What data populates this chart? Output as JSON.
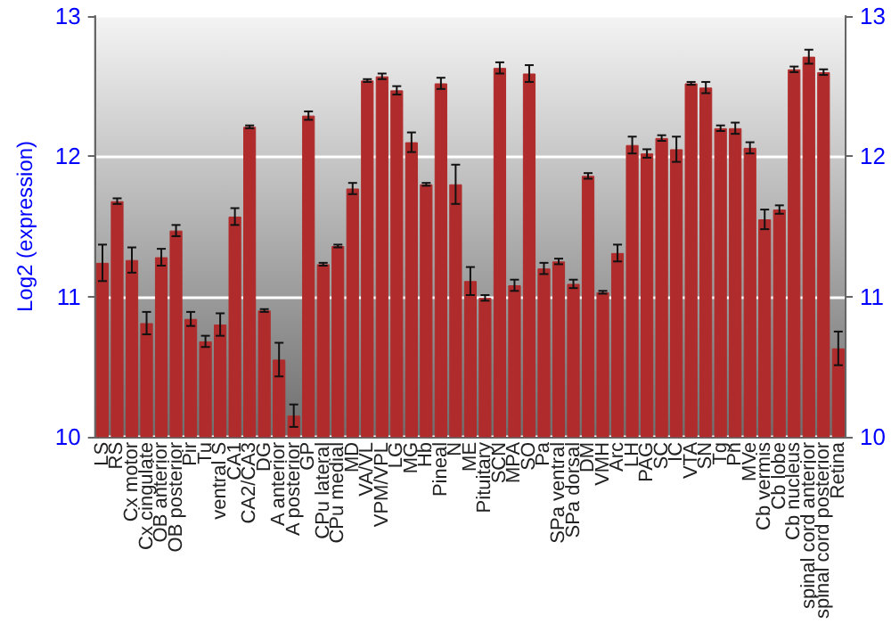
{
  "chart_data": {
    "type": "bar",
    "ylabel": "Log2 (expression)",
    "categories": [
      "LS",
      "RS",
      "Cx motor",
      "Cx cingulate",
      "OB anterior",
      "OB posterior",
      "Pir",
      "Tu",
      "ventral S",
      "CA1",
      "CA2/CA3",
      "DG",
      "A anterior",
      "A posterior",
      "GP",
      "CPu lateral",
      "CPu medial",
      "MD",
      "VA/VL",
      "VPM/VPL",
      "LG",
      "MG",
      "Hb",
      "Pineal",
      "N",
      "ME",
      "Pituitary",
      "SCN",
      "MPA",
      "SO",
      "Pa",
      "SPa ventral",
      "SPa dorsal",
      "DM",
      "VMH",
      "Arc",
      "LH",
      "PAG",
      "SC",
      "IC",
      "VTA",
      "SN",
      "Tg",
      "Pn",
      "MVe",
      "Cb vermis",
      "Cb lobe",
      "Cb nucleus",
      "spinal cord anterior",
      "spinal cord posterior",
      "Retina"
    ],
    "values": [
      11.24,
      11.68,
      11.26,
      10.81,
      11.28,
      11.47,
      10.84,
      10.68,
      10.8,
      11.57,
      12.21,
      10.9,
      10.55,
      10.15,
      12.29,
      11.23,
      11.36,
      11.77,
      12.54,
      12.57,
      12.47,
      12.1,
      11.8,
      12.52,
      11.8,
      11.11,
      10.99,
      12.63,
      11.08,
      12.59,
      11.2,
      11.25,
      11.09,
      11.86,
      11.03,
      11.31,
      12.08,
      12.02,
      12.13,
      12.05,
      12.52,
      12.49,
      12.2,
      12.2,
      12.06,
      11.55,
      11.62,
      12.62,
      12.71,
      12.6,
      10.63
    ],
    "errors": [
      0.13,
      0.02,
      0.09,
      0.08,
      0.06,
      0.04,
      0.05,
      0.04,
      0.08,
      0.06,
      0.01,
      0.01,
      0.12,
      0.08,
      0.03,
      0.01,
      0.01,
      0.04,
      0.01,
      0.02,
      0.03,
      0.07,
      0.01,
      0.04,
      0.14,
      0.1,
      0.02,
      0.04,
      0.04,
      0.06,
      0.04,
      0.02,
      0.03,
      0.02,
      0.01,
      0.06,
      0.06,
      0.03,
      0.02,
      0.09,
      0.01,
      0.04,
      0.02,
      0.04,
      0.04,
      0.07,
      0.03,
      0.02,
      0.05,
      0.02,
      0.12
    ],
    "color": "#b02c2c",
    "ylim": [
      10,
      13
    ],
    "yticks": [
      10,
      11,
      12,
      13
    ],
    "y2lim": [
      10,
      13
    ],
    "y2ticks": [
      10,
      11,
      12,
      13
    ],
    "grid": "y"
  }
}
